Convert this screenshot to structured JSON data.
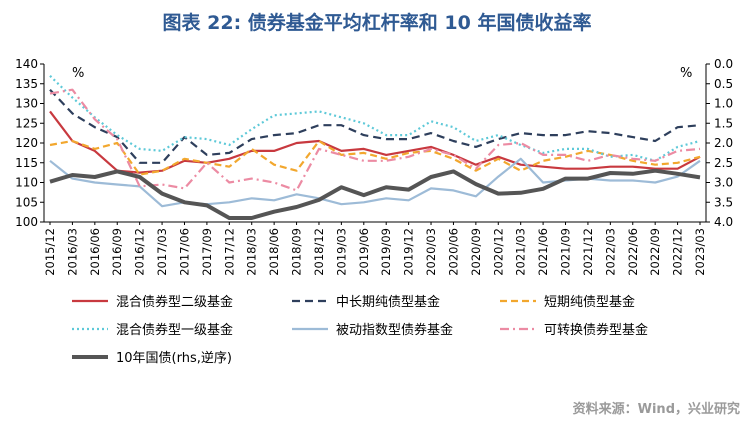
{
  "chart_data": {
    "type": "line",
    "title": "图表 22: 债券基金平均杠杆率和 10 年国债收益率",
    "source": "资料来源：Wind，兴业研究",
    "left_unit": "%",
    "right_unit": "%",
    "ylim": [
      100,
      140
    ],
    "y_ticks": [
      100,
      105,
      110,
      115,
      120,
      125,
      130,
      135,
      140
    ],
    "y2lim": [
      4.0,
      0.0
    ],
    "y2_ticks": [
      "0.0",
      "0.5",
      "1.0",
      "1.5",
      "2.0",
      "2.5",
      "3.0",
      "3.5",
      "4.0"
    ],
    "y2_inverted": true,
    "x": [
      "2015/12",
      "2016/03",
      "2016/06",
      "2016/09",
      "2016/12",
      "2017/03",
      "2017/06",
      "2017/09",
      "2017/12",
      "2018/03",
      "2018/06",
      "2018/09",
      "2018/12",
      "2019/03",
      "2019/06",
      "2019/09",
      "2019/12",
      "2020/03",
      "2020/06",
      "2020/09",
      "2020/12",
      "2021/03",
      "2021/06",
      "2021/09",
      "2021/12",
      "2022/03",
      "2022/06",
      "2022/09",
      "2022/12",
      "2023/03"
    ],
    "series": [
      {
        "name": "混合债券型二级基金",
        "axis": "left",
        "color": "#c8393f",
        "dash": "solid",
        "width": 2.2,
        "values": [
          128,
          120.5,
          118,
          113,
          112.5,
          113,
          115.5,
          115,
          116,
          118,
          118,
          120,
          120.5,
          118,
          118.5,
          117,
          118,
          119,
          117,
          114.5,
          116.5,
          114.5,
          114,
          113.5,
          113.5,
          114,
          114,
          113.5,
          113.5,
          116.5
        ]
      },
      {
        "name": "中长期纯债型基金",
        "axis": "left",
        "color": "#2e3f5c",
        "dash": "8,5",
        "width": 2.2,
        "values": [
          133.5,
          127.5,
          124,
          121.5,
          115,
          115,
          121.5,
          117,
          117.5,
          121,
          122,
          122.5,
          124.5,
          124.5,
          122,
          121,
          121,
          122.5,
          120.5,
          119,
          121,
          122.5,
          122,
          122,
          123,
          122.5,
          121.5,
          120.5,
          124,
          124.5
        ]
      },
      {
        "name": "短期纯债型基金",
        "axis": "left",
        "color": "#f2a72e",
        "dash": "7,4",
        "width": 2.2,
        "values": [
          119.5,
          120.5,
          118.5,
          120,
          112,
          113,
          116,
          115,
          114,
          118.5,
          114.5,
          113,
          120.5,
          117,
          117.5,
          116,
          117.5,
          118,
          116,
          113,
          116,
          113,
          115.5,
          116.5,
          118,
          117,
          115.5,
          114.5,
          115,
          116.5
        ]
      },
      {
        "name": "混合债券型一级基金",
        "axis": "left",
        "color": "#5ec9d8",
        "dash": "2,3",
        "width": 2.2,
        "values": [
          137,
          131.5,
          126.5,
          122,
          118.5,
          118,
          121.5,
          121,
          119.5,
          123.5,
          127,
          127.5,
          128,
          126.5,
          125,
          122,
          122,
          125.5,
          124,
          120.5,
          122,
          119.5,
          117.5,
          118.5,
          118.5,
          116.5,
          117,
          115.5,
          119,
          120.5
        ]
      },
      {
        "name": "被动指数型债券基金",
        "axis": "left",
        "color": "#9dbbd7",
        "dash": "solid",
        "width": 2.2,
        "values": [
          115.5,
          111,
          110,
          109.5,
          109,
          104,
          105,
          104.5,
          105,
          106,
          105.5,
          107,
          106,
          104.5,
          105,
          106,
          105.5,
          108.5,
          108,
          106.5,
          111.5,
          116,
          110,
          110.5,
          111,
          110.5,
          110.5,
          110,
          111.5,
          115.5
        ]
      },
      {
        "name": "可转换债券型基金",
        "axis": "left",
        "color": "#ec8ba3",
        "dash": "9,4,2,4",
        "width": 2.2,
        "values": [
          132.5,
          133.5,
          126,
          121,
          109,
          109.5,
          108.5,
          115,
          110,
          111,
          110,
          108,
          118.5,
          117,
          115.5,
          115.5,
          116.5,
          118.5,
          117,
          113.5,
          119.5,
          120,
          117,
          117,
          115.5,
          117,
          116,
          115.5,
          118,
          118.5
        ]
      },
      {
        "name": "10年国债(rhs,逆序)",
        "axis": "right",
        "color": "#555555",
        "dash": "solid",
        "width": 4,
        "values": [
          2.98,
          2.81,
          2.86,
          2.72,
          2.86,
          3.28,
          3.5,
          3.58,
          3.9,
          3.9,
          3.74,
          3.62,
          3.44,
          3.12,
          3.32,
          3.12,
          3.18,
          2.86,
          2.72,
          3.04,
          3.28,
          3.26,
          3.16,
          2.9,
          2.9,
          2.76,
          2.78,
          2.7,
          2.78,
          2.87
        ]
      }
    ],
    "legend_position": "bottom",
    "grid": false
  }
}
